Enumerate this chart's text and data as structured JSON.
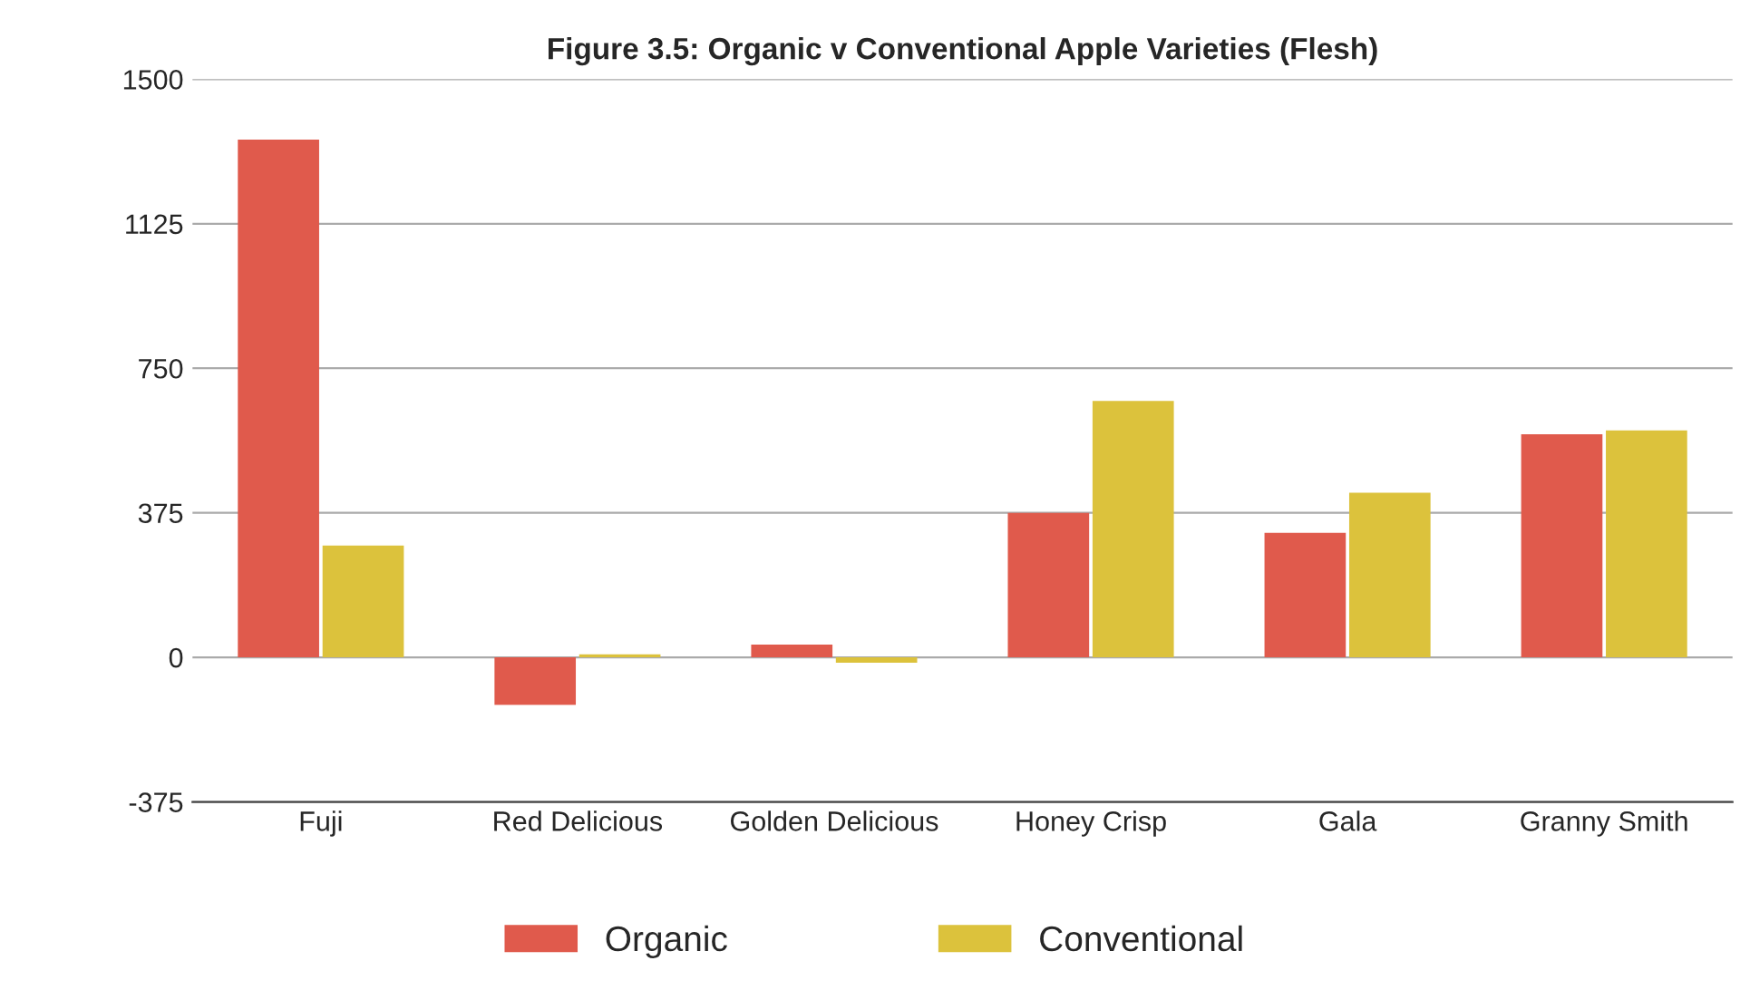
{
  "chart_data": {
    "type": "bar",
    "title": "Figure 3.5: Organic v Conventional Apple Varieties (Flesh)",
    "categories": [
      "Fuji",
      "Red Delicious",
      "Golden Delicious",
      "Honey Crisp",
      "Gala",
      "Granny Smith"
    ],
    "series": [
      {
        "name": "Organic",
        "color": "#e05a4c",
        "values": [
          1343,
          -123,
          33,
          375,
          323,
          579
        ]
      },
      {
        "name": "Conventional",
        "color": "#dcc23c",
        "values": [
          290,
          8,
          -14,
          665,
          427,
          589
        ]
      }
    ],
    "ylim": [
      -375,
      1500
    ],
    "yticks": [
      -375,
      0,
      375,
      750,
      1125,
      1500
    ],
    "grid": "y",
    "legend": "bottom"
  }
}
